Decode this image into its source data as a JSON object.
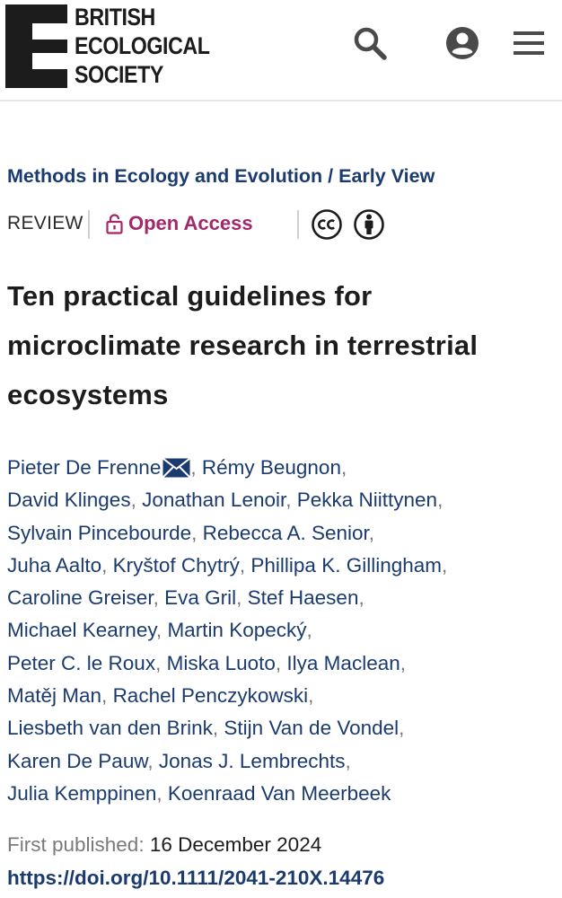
{
  "header": {
    "logo_lines": [
      "BRITISH",
      "ECOLOGICAL",
      "SOCIETY"
    ]
  },
  "breadcrumb": {
    "journal": "Methods in Ecology and Evolution",
    "separator": "/",
    "issue": "Early View"
  },
  "article": {
    "type": "REVIEW",
    "access": "Open Access",
    "title": "Ten practical guidelines for microclimate research in terrestrial ecosystems",
    "authors": [
      "Pieter De Frenne",
      "Rémy Beugnon",
      "David Klinges",
      "Jonathan Lenoir",
      "Pekka Niittynen",
      "Sylvain Pincebourde",
      "Rebecca A. Senior",
      "Juha Aalto",
      "Kryštof Chytrý",
      "Phillipa K. Gillingham",
      "Caroline Greiser",
      "Eva Gril",
      "Stef Haesen",
      "Michael Kearney",
      "Martin Kopecký",
      "Peter C. le Roux",
      "Miska Luoto",
      "Ilya Maclean",
      "Matěj Man",
      "Rachel Penczykowski",
      "Liesbeth van den Brink",
      "Stijn Van de Vondel",
      "Karen De Pauw",
      "Jonas J. Lembrechts",
      "Julia Kemppinen",
      "Koenraad Van Meerbeek"
    ],
    "published_label": "First published:",
    "published_date": "16 December 2024",
    "doi": "https://doi.org/10.1111/2041-210X.14476"
  },
  "icons": {
    "search": "search-icon",
    "account": "account-icon",
    "menu": "menu-icon",
    "lock": "lock-open-icon",
    "cc": "creative-commons-icon",
    "by": "attribution-icon",
    "mail": "mail-icon"
  },
  "colors": {
    "link": "#1b3b6f",
    "open_access": "#a1286b",
    "text": "#1c1c1c",
    "muted": "#7a7a7a"
  }
}
